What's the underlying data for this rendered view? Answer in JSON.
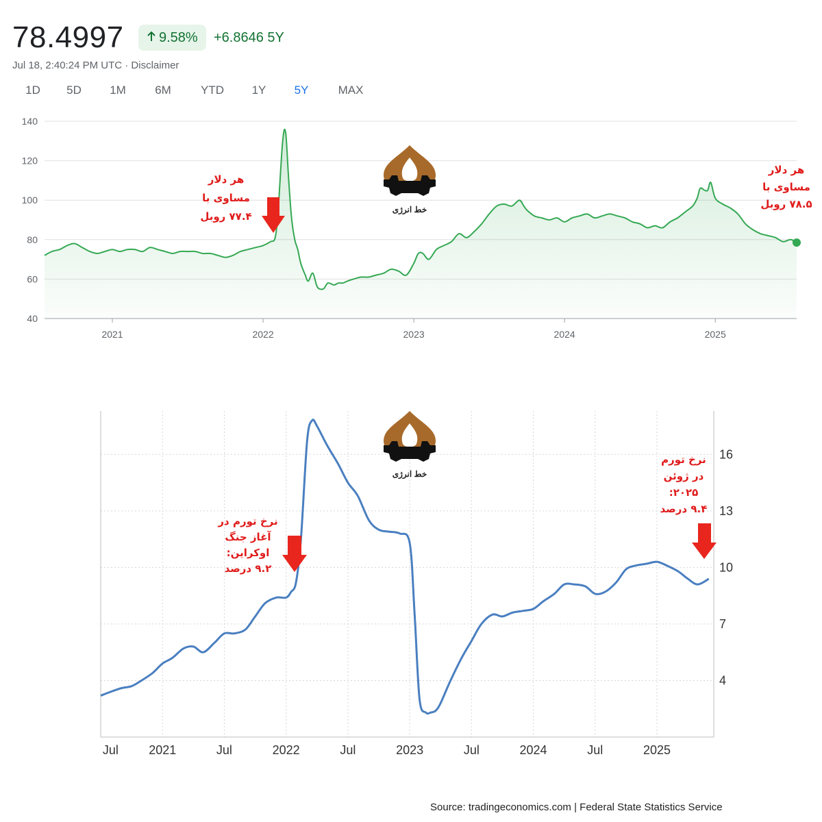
{
  "header": {
    "price": "78.4997",
    "change_pct": "9.58%",
    "change_abs": "+6.8646 5Y",
    "timestamp": "Jul 18, 2:40:24 PM UTC · Disclaimer",
    "ranges": [
      "1D",
      "5D",
      "1M",
      "6M",
      "YTD",
      "1Y",
      "5Y",
      "MAX"
    ],
    "active_range": "5Y",
    "up_color": "#137333"
  },
  "logo": {
    "text": "خط انرژی"
  },
  "source": "Source: tradingeconomics.com | Federal State Statistics Service",
  "chart_data": [
    {
      "type": "area",
      "ylim": [
        40,
        140
      ],
      "yticks": [
        140,
        120,
        100,
        80,
        60,
        40
      ],
      "xtick_labels": [
        "2021",
        "2022",
        "2023",
        "2024",
        "2025"
      ],
      "grid": true,
      "color": "#34a853",
      "series": [
        {
          "x": [
            2020.55,
            2020.6,
            2020.65,
            2020.7,
            2020.75,
            2020.8,
            2020.85,
            2020.9,
            2020.95,
            2021.0,
            2021.05,
            2021.1,
            2021.15,
            2021.2,
            2021.25,
            2021.3,
            2021.35,
            2021.4,
            2021.45,
            2021.5,
            2021.55,
            2021.6,
            2021.65,
            2021.7,
            2021.75,
            2021.8,
            2021.85,
            2021.9,
            2021.95,
            2022.0,
            2022.05,
            2022.08,
            2022.1,
            2022.13,
            2022.15,
            2022.17,
            2022.19,
            2022.21,
            2022.23,
            2022.25,
            2022.28,
            2022.3,
            2022.33,
            2022.36,
            2022.4,
            2022.43,
            2022.47,
            2022.5,
            2022.53,
            2022.56,
            2022.6,
            2022.65,
            2022.7,
            2022.75,
            2022.8,
            2022.85,
            2022.9,
            2022.95,
            2023.0,
            2023.03,
            2023.06,
            2023.1,
            2023.15,
            2023.2,
            2023.25,
            2023.3,
            2023.35,
            2023.4,
            2023.45,
            2023.5,
            2023.55,
            2023.6,
            2023.65,
            2023.7,
            2023.73,
            2023.75,
            2023.8,
            2023.85,
            2023.9,
            2023.95,
            2024.0,
            2024.05,
            2024.1,
            2024.15,
            2024.2,
            2024.25,
            2024.3,
            2024.35,
            2024.4,
            2024.45,
            2024.5,
            2024.55,
            2024.6,
            2024.65,
            2024.7,
            2024.75,
            2024.8,
            2024.85,
            2024.88,
            2024.9,
            2024.93,
            2024.95,
            2024.97,
            2025.0,
            2025.05,
            2025.1,
            2025.15,
            2025.2,
            2025.25,
            2025.3,
            2025.35,
            2025.4,
            2025.45,
            2025.5,
            2025.54
          ],
          "y": [
            72,
            74,
            75,
            77,
            78,
            76,
            74,
            73,
            74,
            75,
            74,
            75,
            75,
            74,
            76,
            75,
            74,
            73,
            74,
            74,
            74,
            73,
            73,
            72,
            71,
            72,
            74,
            75,
            76,
            77,
            79,
            81,
            95,
            130,
            134,
            110,
            90,
            80,
            75,
            68,
            62,
            59,
            63,
            56,
            55,
            58,
            57,
            58,
            58,
            59,
            60,
            61,
            61,
            62,
            63,
            65,
            64,
            62,
            68,
            73,
            73,
            70,
            75,
            77,
            79,
            83,
            81,
            84,
            88,
            93,
            97,
            98,
            97,
            100,
            97,
            95,
            92,
            91,
            90,
            91,
            89,
            91,
            92,
            93,
            91,
            92,
            93,
            92,
            91,
            89,
            88,
            86,
            87,
            86,
            89,
            91,
            94,
            97,
            101,
            106,
            105,
            105,
            109,
            101,
            98,
            96,
            93,
            88,
            85,
            83,
            82,
            81,
            79,
            80,
            78.5
          ]
        }
      ],
      "annotations": {
        "left": [
          "هر دلار",
          "مساوی با",
          "۷۷.۴ روبل"
        ],
        "right": [
          "هر دلار",
          "مساوی با",
          "۷۸.۵ روبل"
        ]
      }
    },
    {
      "type": "line",
      "ylim": [
        1,
        18
      ],
      "yticks": [
        16,
        13,
        10,
        7,
        4
      ],
      "xtick_labels": [
        "Jul",
        "2021",
        "Jul",
        "2022",
        "Jul",
        "2023",
        "Jul",
        "2024",
        "Jul",
        "2025"
      ],
      "grid": true,
      "color": "#4a7fc0",
      "series": [
        {
          "x": [
            2020.5,
            2020.58,
            2020.67,
            2020.75,
            2020.83,
            2020.92,
            2021.0,
            2021.08,
            2021.17,
            2021.25,
            2021.33,
            2021.42,
            2021.5,
            2021.58,
            2021.67,
            2021.75,
            2021.83,
            2021.92,
            2022.0,
            2022.04,
            2022.08,
            2022.12,
            2022.17,
            2022.21,
            2022.25,
            2022.33,
            2022.42,
            2022.5,
            2022.58,
            2022.67,
            2022.75,
            2022.83,
            2022.92,
            2023.0,
            2023.04,
            2023.08,
            2023.13,
            2023.17,
            2023.21,
            2023.25,
            2023.33,
            2023.42,
            2023.5,
            2023.58,
            2023.67,
            2023.75,
            2023.83,
            2023.92,
            2024.0,
            2024.08,
            2024.17,
            2024.25,
            2024.33,
            2024.42,
            2024.5,
            2024.58,
            2024.67,
            2024.75,
            2024.83,
            2024.92,
            2025.0,
            2025.08,
            2025.17,
            2025.25,
            2025.33,
            2025.42
          ],
          "y": [
            3.2,
            3.4,
            3.6,
            3.7,
            4.0,
            4.4,
            4.9,
            5.2,
            5.7,
            5.8,
            5.5,
            6.0,
            6.5,
            6.5,
            6.7,
            7.4,
            8.1,
            8.4,
            8.4,
            8.7,
            9.2,
            11.5,
            16.7,
            17.8,
            17.5,
            16.5,
            15.5,
            14.5,
            13.8,
            12.5,
            12.0,
            11.9,
            11.8,
            11.3,
            7.5,
            3.0,
            2.3,
            2.3,
            2.4,
            2.8,
            4.0,
            5.2,
            6.1,
            7.0,
            7.5,
            7.4,
            7.6,
            7.7,
            7.8,
            8.2,
            8.6,
            9.1,
            9.1,
            9.0,
            8.6,
            8.7,
            9.2,
            9.9,
            10.1,
            10.2,
            10.3,
            10.1,
            9.8,
            9.4,
            9.1,
            9.4
          ]
        }
      ],
      "annotations": {
        "left": [
          "نرخ تورم در",
          "آغاز جنگ",
          "اوکراین:",
          "۹.۲ درصد"
        ],
        "right": [
          "نرخ تورم",
          "در ژوئن",
          "۲۰۲۵:",
          "۹.۴ درصد"
        ]
      }
    }
  ]
}
